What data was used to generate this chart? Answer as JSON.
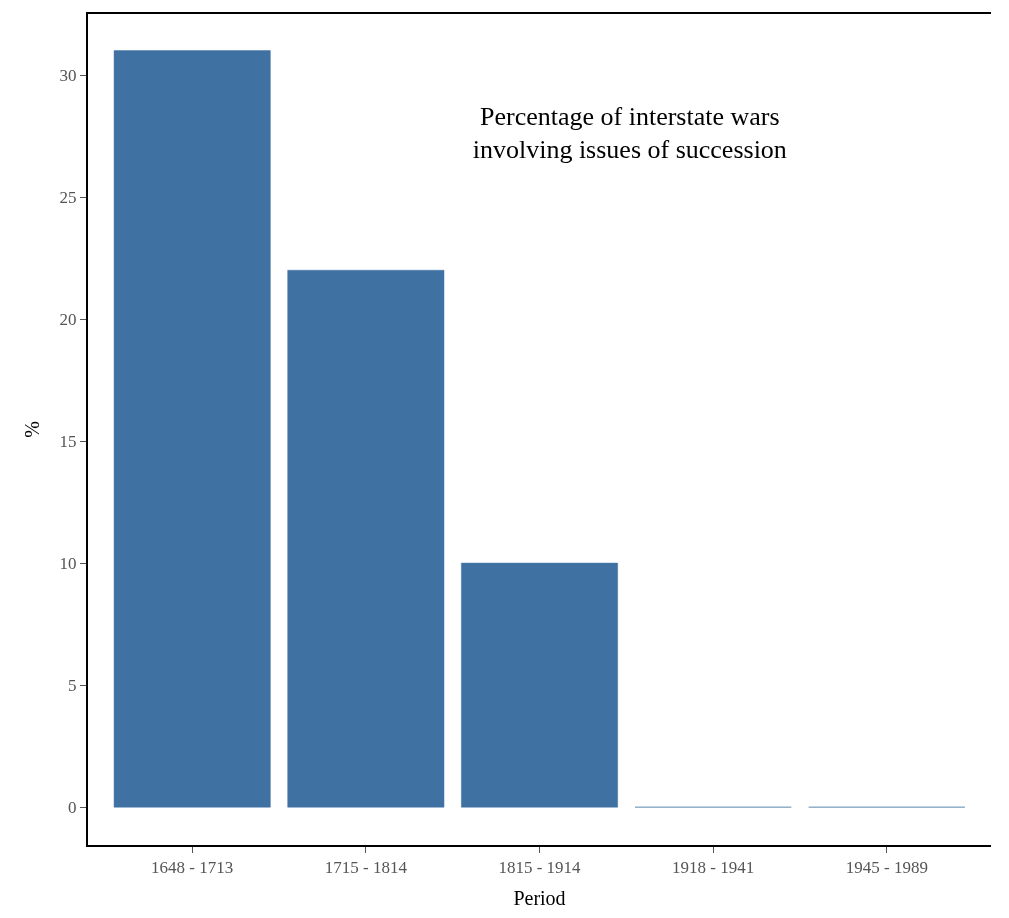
{
  "chart_data": {
    "type": "bar",
    "title": "Percentage of interstate wars\ninvolving issues of succession",
    "xlabel": "Period",
    "ylabel": "%",
    "categories": [
      "1648 - 1713",
      "1715 - 1814",
      "1815 - 1914",
      "1918 - 1941",
      "1945 - 1989"
    ],
    "values": [
      31,
      22,
      10,
      0,
      0
    ],
    "color": "#3f72a2",
    "ylim": [
      -1.55,
      32.5
    ],
    "yticks": [
      0,
      5,
      10,
      15,
      20,
      25,
      30
    ]
  }
}
